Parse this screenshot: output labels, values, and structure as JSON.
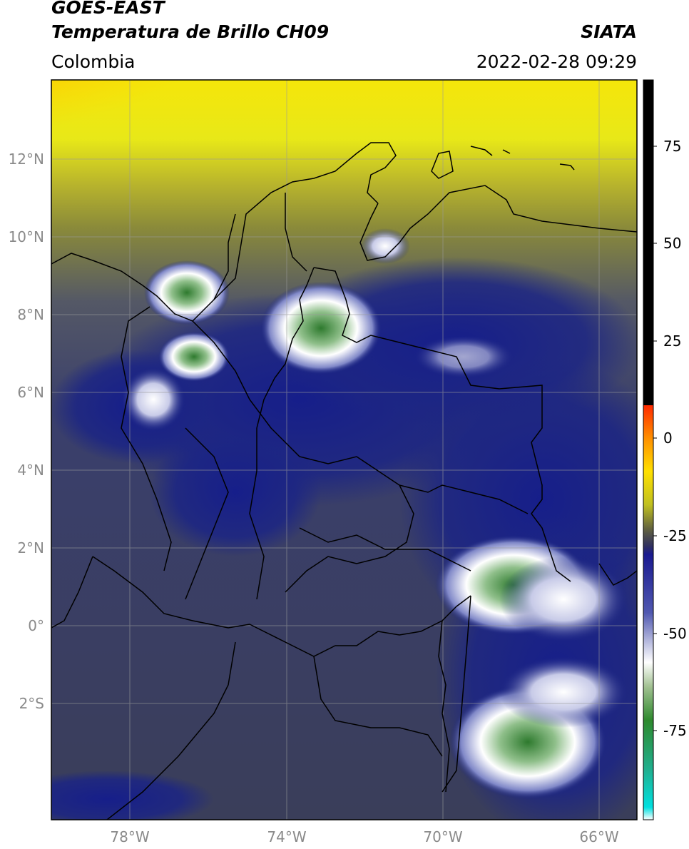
{
  "header": {
    "satellite": "GOES-EAST",
    "product": "Temperatura de Brillo CH09",
    "organization": "SIATA",
    "region": "Colombia",
    "datetime": "2022-02-28 09:29"
  },
  "map": {
    "lon_ticks": [
      "78°W",
      "74°W",
      "70°W",
      "66°W"
    ],
    "lat_ticks": [
      "12°N",
      "10°N",
      "8°N",
      "6°N",
      "4°N",
      "2°N",
      "0°",
      "2°S"
    ],
    "colors": {
      "background_cold": "#1a2480",
      "land_gray": "#4a4f5c",
      "warm_yellow": "#f2ee10",
      "hot_orange": "#ff8c00"
    }
  },
  "colorbar": {
    "ticks": [
      "75",
      "50",
      "25",
      "0",
      "-25",
      "-50",
      "-75"
    ]
  }
}
